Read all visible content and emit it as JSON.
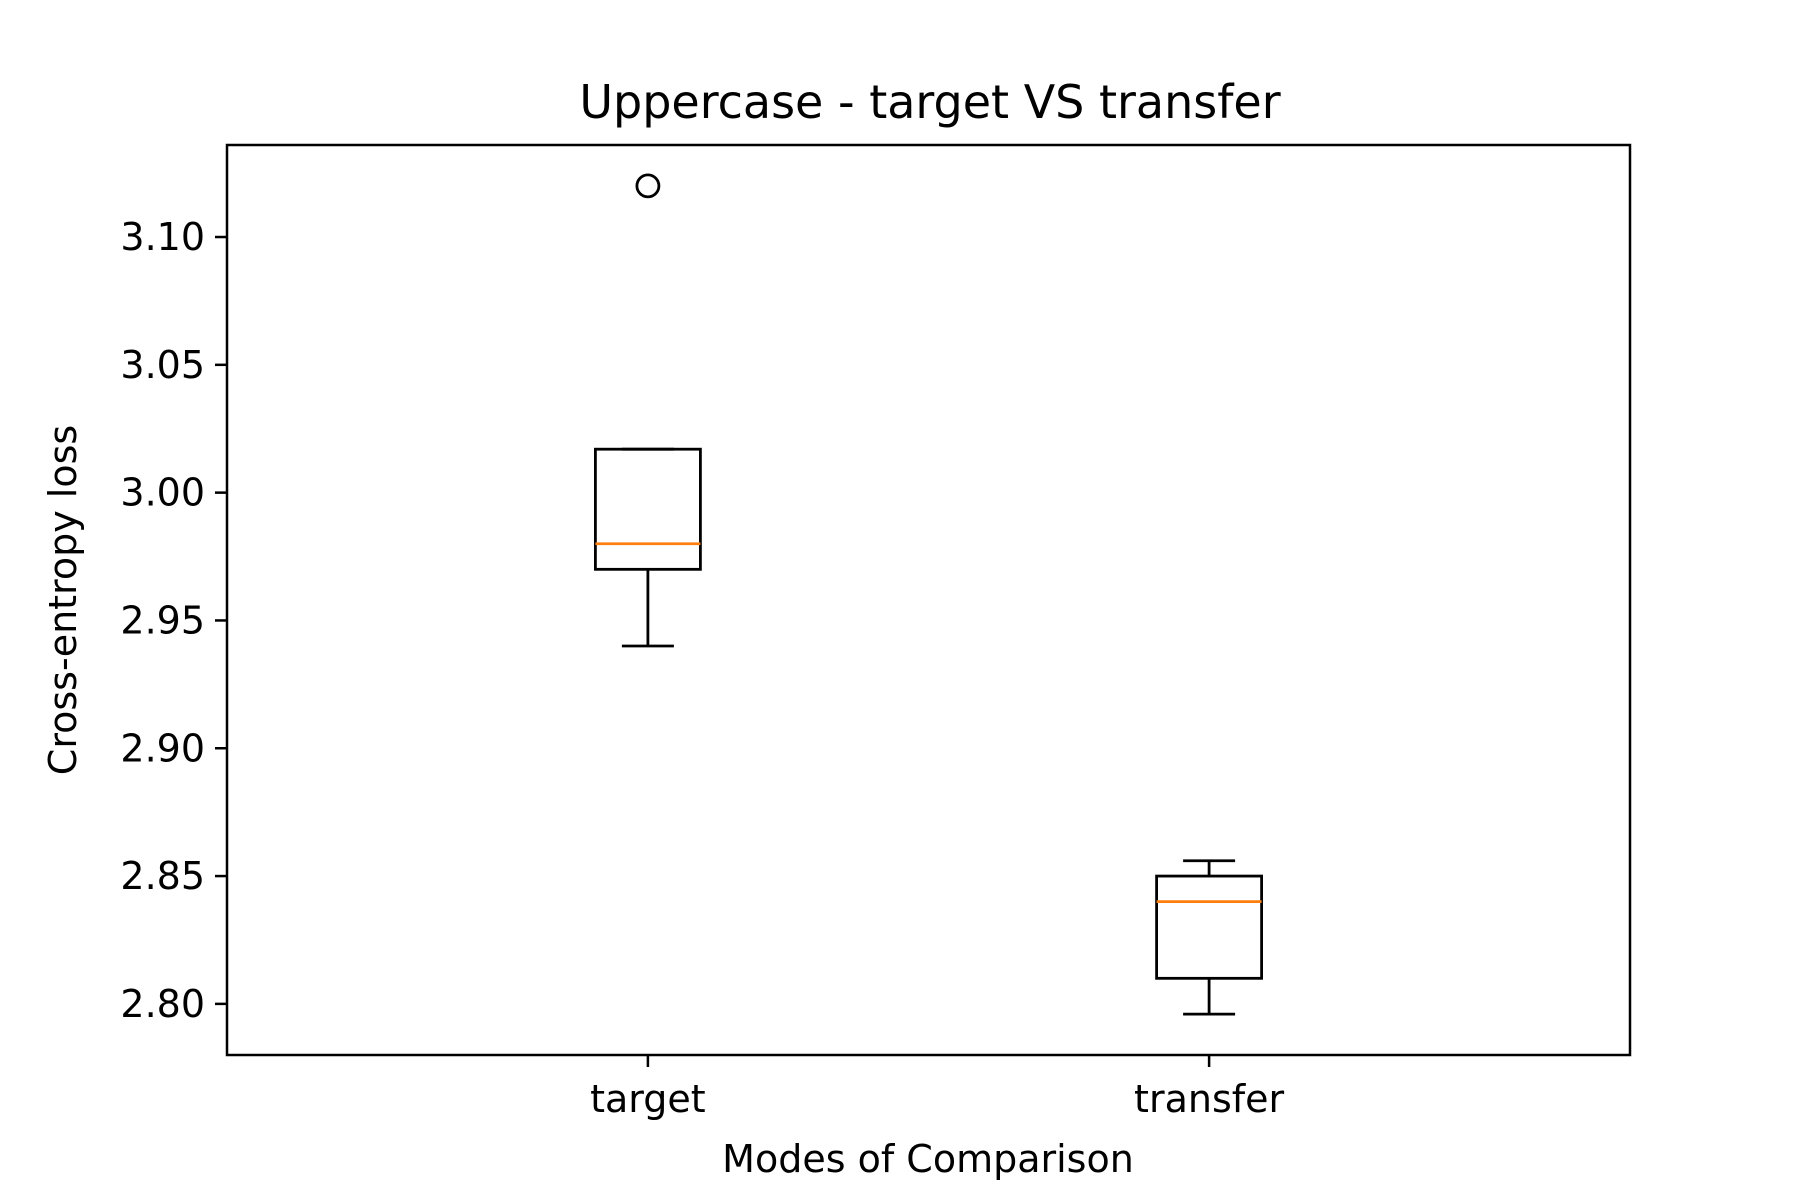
{
  "chart_data": {
    "type": "box",
    "title": "Uppercase - target VS transfer",
    "xlabel": "Modes of Comparison",
    "ylabel": "Cross-entropy loss",
    "categories": [
      "target",
      "transfer"
    ],
    "ylim": [
      2.78,
      3.136
    ],
    "yticks": [
      "2.80",
      "2.85",
      "2.90",
      "2.95",
      "3.00",
      "3.05",
      "3.10"
    ],
    "boxes": [
      {
        "name": "target",
        "whisker_low": 2.94,
        "q1": 2.97,
        "median": 2.98,
        "q3": 3.017,
        "whisker_high": 3.017,
        "outliers": [
          3.12
        ]
      },
      {
        "name": "transfer",
        "whisker_low": 2.796,
        "q1": 2.81,
        "median": 2.84,
        "q3": 2.85,
        "whisker_high": 2.856,
        "outliers": []
      }
    ],
    "grid": false,
    "colors": {
      "box": "#000000",
      "median": "#ff7f0e"
    }
  }
}
